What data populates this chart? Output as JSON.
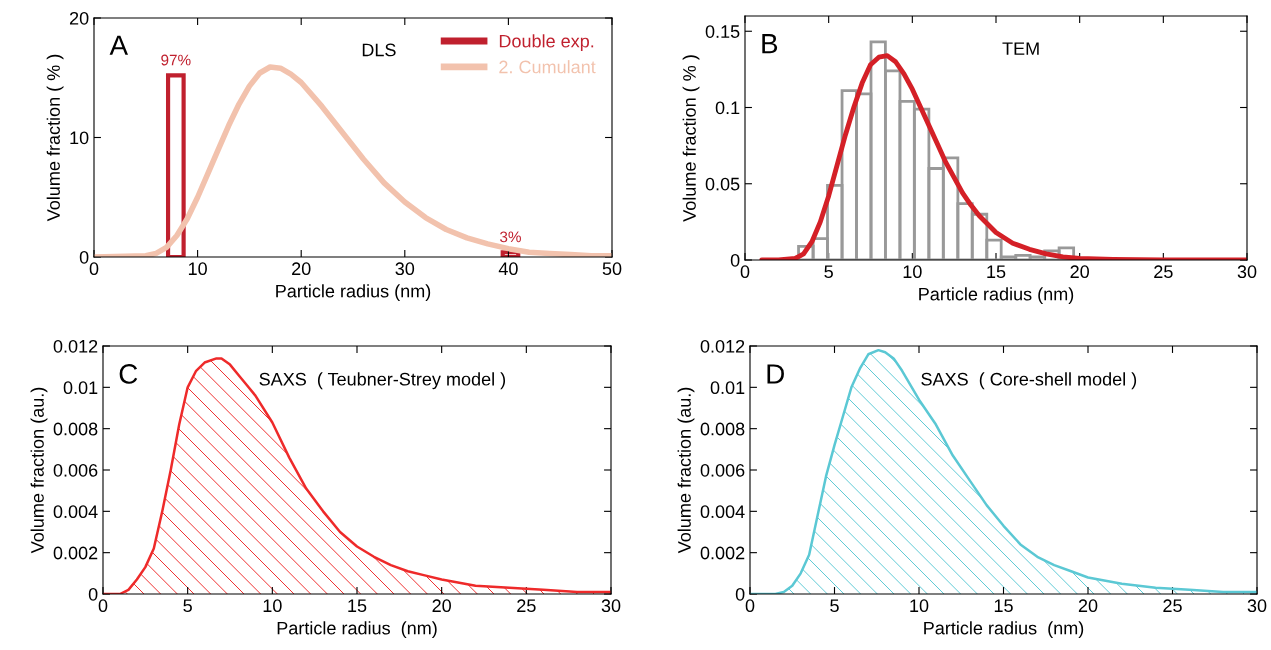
{
  "chart_data": [
    {
      "type": "line",
      "xlabel": "Particle radius (nm)",
      "ylabel": "Volume fraction ( % )",
      "annotations": [
        "A",
        "DLS",
        {
          "text": "97%",
          "x": 7.9,
          "y": 15.2
        },
        {
          "text": "3%",
          "x": 40.2,
          "y": 0.4
        }
      ],
      "xlim": [
        0,
        50
      ],
      "xticks": [
        0,
        10,
        20,
        30,
        40,
        50
      ],
      "ylim": [
        0,
        20
      ],
      "yticks": [
        0,
        10,
        20
      ],
      "legend": "top right",
      "series": [
        {
          "name": "Double exp.",
          "type": "bar",
          "color": "#c0202e",
          "x": [
            7.9,
            40.2
          ],
          "values": [
            15.2,
            0.4
          ]
        },
        {
          "name": "2. Cumulant",
          "type": "line",
          "color": "#f2c2ad",
          "x": [
            0,
            5,
            6,
            7,
            8,
            9,
            10,
            11,
            12,
            13,
            14,
            15,
            16,
            17,
            18,
            19,
            20,
            22,
            24,
            26,
            28,
            30,
            32,
            34,
            36,
            38,
            40,
            42,
            44,
            46,
            48,
            50
          ],
          "values": [
            0,
            0.1,
            0.3,
            0.8,
            1.8,
            3.2,
            5.0,
            7.0,
            9.0,
            11.0,
            12.8,
            14.3,
            15.4,
            15.9,
            15.8,
            15.3,
            14.6,
            12.6,
            10.4,
            8.2,
            6.2,
            4.6,
            3.3,
            2.3,
            1.6,
            1.1,
            0.7,
            0.4,
            0.3,
            0.2,
            0.1,
            0.1
          ]
        }
      ]
    },
    {
      "type": "histogram",
      "xlabel": "Particle radius (nm)",
      "ylabel": "Volume fraction ( % )",
      "annotations": [
        "B",
        "TEM"
      ],
      "xlim": [
        0,
        30
      ],
      "xticks": [
        0,
        5,
        10,
        15,
        20,
        25,
        30
      ],
      "ylim": [
        0,
        0.16
      ],
      "yticks": [
        0,
        0.05,
        0.1,
        0.15
      ],
      "series": [
        {
          "type": "histogram",
          "color": "#999999",
          "bins": [
            3.2,
            4.07,
            4.93,
            5.8,
            6.66,
            7.53,
            8.39,
            9.26,
            10.12,
            10.99,
            11.85,
            12.72,
            13.58,
            14.45,
            15.31,
            16.18,
            17.04,
            17.91,
            18.77,
            19.64,
            20.5,
            21.37,
            22.23,
            23.1,
            23.96,
            24.83,
            25.69,
            26.56,
            27.42
          ],
          "values": [
            0.009,
            0.014,
            0.049,
            0.111,
            0.109,
            0.143,
            0.124,
            0.104,
            0.099,
            0.06,
            0.067,
            0.037,
            0.03,
            0.013,
            0.002,
            0.003,
            0.002,
            0.006,
            0.008,
            null,
            null,
            null,
            null,
            0,
            0,
            0,
            0,
            null
          ]
        },
        {
          "type": "line",
          "color": "#d42027",
          "x": [
            1,
            2,
            3,
            3.5,
            4,
            4.5,
            5,
            5.5,
            6,
            6.5,
            7,
            7.5,
            8,
            8.5,
            9,
            9.5,
            10,
            10.5,
            11,
            11.5,
            12,
            12.5,
            13,
            13.5,
            14,
            15,
            16,
            17,
            18,
            19,
            20,
            22,
            25,
            30
          ],
          "values": [
            0,
            0,
            0.001,
            0.004,
            0.012,
            0.025,
            0.042,
            0.062,
            0.082,
            0.1,
            0.116,
            0.128,
            0.133,
            0.134,
            0.13,
            0.122,
            0.112,
            0.1,
            0.088,
            0.076,
            0.064,
            0.054,
            0.044,
            0.036,
            0.029,
            0.018,
            0.011,
            0.007,
            0.004,
            0.002,
            0.001,
            0.0004,
            0.0001,
            0
          ]
        }
      ]
    },
    {
      "type": "area",
      "xlabel": "Particle radius  (nm)",
      "ylabel": "Volume fraction (au.)",
      "annotations": [
        "C",
        "SAXS  ( Teubner-Strey model )"
      ],
      "xlim": [
        0,
        30
      ],
      "xticks": [
        0,
        5,
        10,
        15,
        20,
        25,
        30
      ],
      "ylim": [
        0,
        0.012
      ],
      "yticks": [
        0,
        0.002,
        0.004,
        0.006,
        0.008,
        0.01,
        0.012
      ],
      "series": [
        {
          "color": "#ee2a2a",
          "x": [
            0,
            1,
            1.5,
            2,
            2.5,
            3,
            3.5,
            4,
            4.5,
            5,
            5.5,
            6,
            6.7,
            7,
            7.5,
            8,
            8.5,
            9,
            10,
            11,
            12,
            13,
            14,
            15,
            16,
            17,
            18,
            19,
            20,
            22,
            24,
            26,
            28,
            30
          ],
          "values": [
            0,
            0,
            0.0002,
            0.0007,
            0.0013,
            0.0022,
            0.004,
            0.006,
            0.0082,
            0.01,
            0.0108,
            0.0112,
            0.0114,
            0.0114,
            0.0111,
            0.0106,
            0.0101,
            0.0096,
            0.0083,
            0.0066,
            0.0051,
            0.004,
            0.003,
            0.0023,
            0.0018,
            0.0014,
            0.0011,
            0.0009,
            0.0007,
            0.0004,
            0.0003,
            0.0002,
            0.0001,
            0.0001
          ]
        }
      ]
    },
    {
      "type": "area",
      "xlabel": "Particle radius  (nm)",
      "ylabel": "Volume fraction (au.)",
      "annotations": [
        "D",
        "SAXS  ( Core-shell model )"
      ],
      "xlim": [
        0,
        30
      ],
      "xticks": [
        0,
        5,
        10,
        15,
        20,
        25,
        30
      ],
      "ylim": [
        0,
        0.012
      ],
      "yticks": [
        0,
        0.002,
        0.004,
        0.006,
        0.008,
        0.01,
        0.012
      ],
      "series": [
        {
          "color": "#5bc8d4",
          "x": [
            0,
            1.5,
            2,
            2.5,
            3,
            3.5,
            4,
            4.5,
            5,
            5.5,
            6,
            6.5,
            7,
            7.6,
            8,
            8.5,
            9,
            10,
            11,
            12,
            13,
            14,
            15,
            16,
            17,
            18,
            19,
            20,
            22,
            24,
            26,
            28,
            30
          ],
          "values": [
            0,
            0,
            0.0001,
            0.0004,
            0.001,
            0.0019,
            0.0038,
            0.0057,
            0.0072,
            0.0086,
            0.01,
            0.0109,
            0.0116,
            0.0118,
            0.0117,
            0.0114,
            0.0108,
            0.0094,
            0.0082,
            0.0067,
            0.0055,
            0.0043,
            0.0033,
            0.0024,
            0.0018,
            0.0014,
            0.0011,
            0.0008,
            0.0005,
            0.0003,
            0.0002,
            0.0001,
            0.0001
          ]
        }
      ]
    }
  ]
}
